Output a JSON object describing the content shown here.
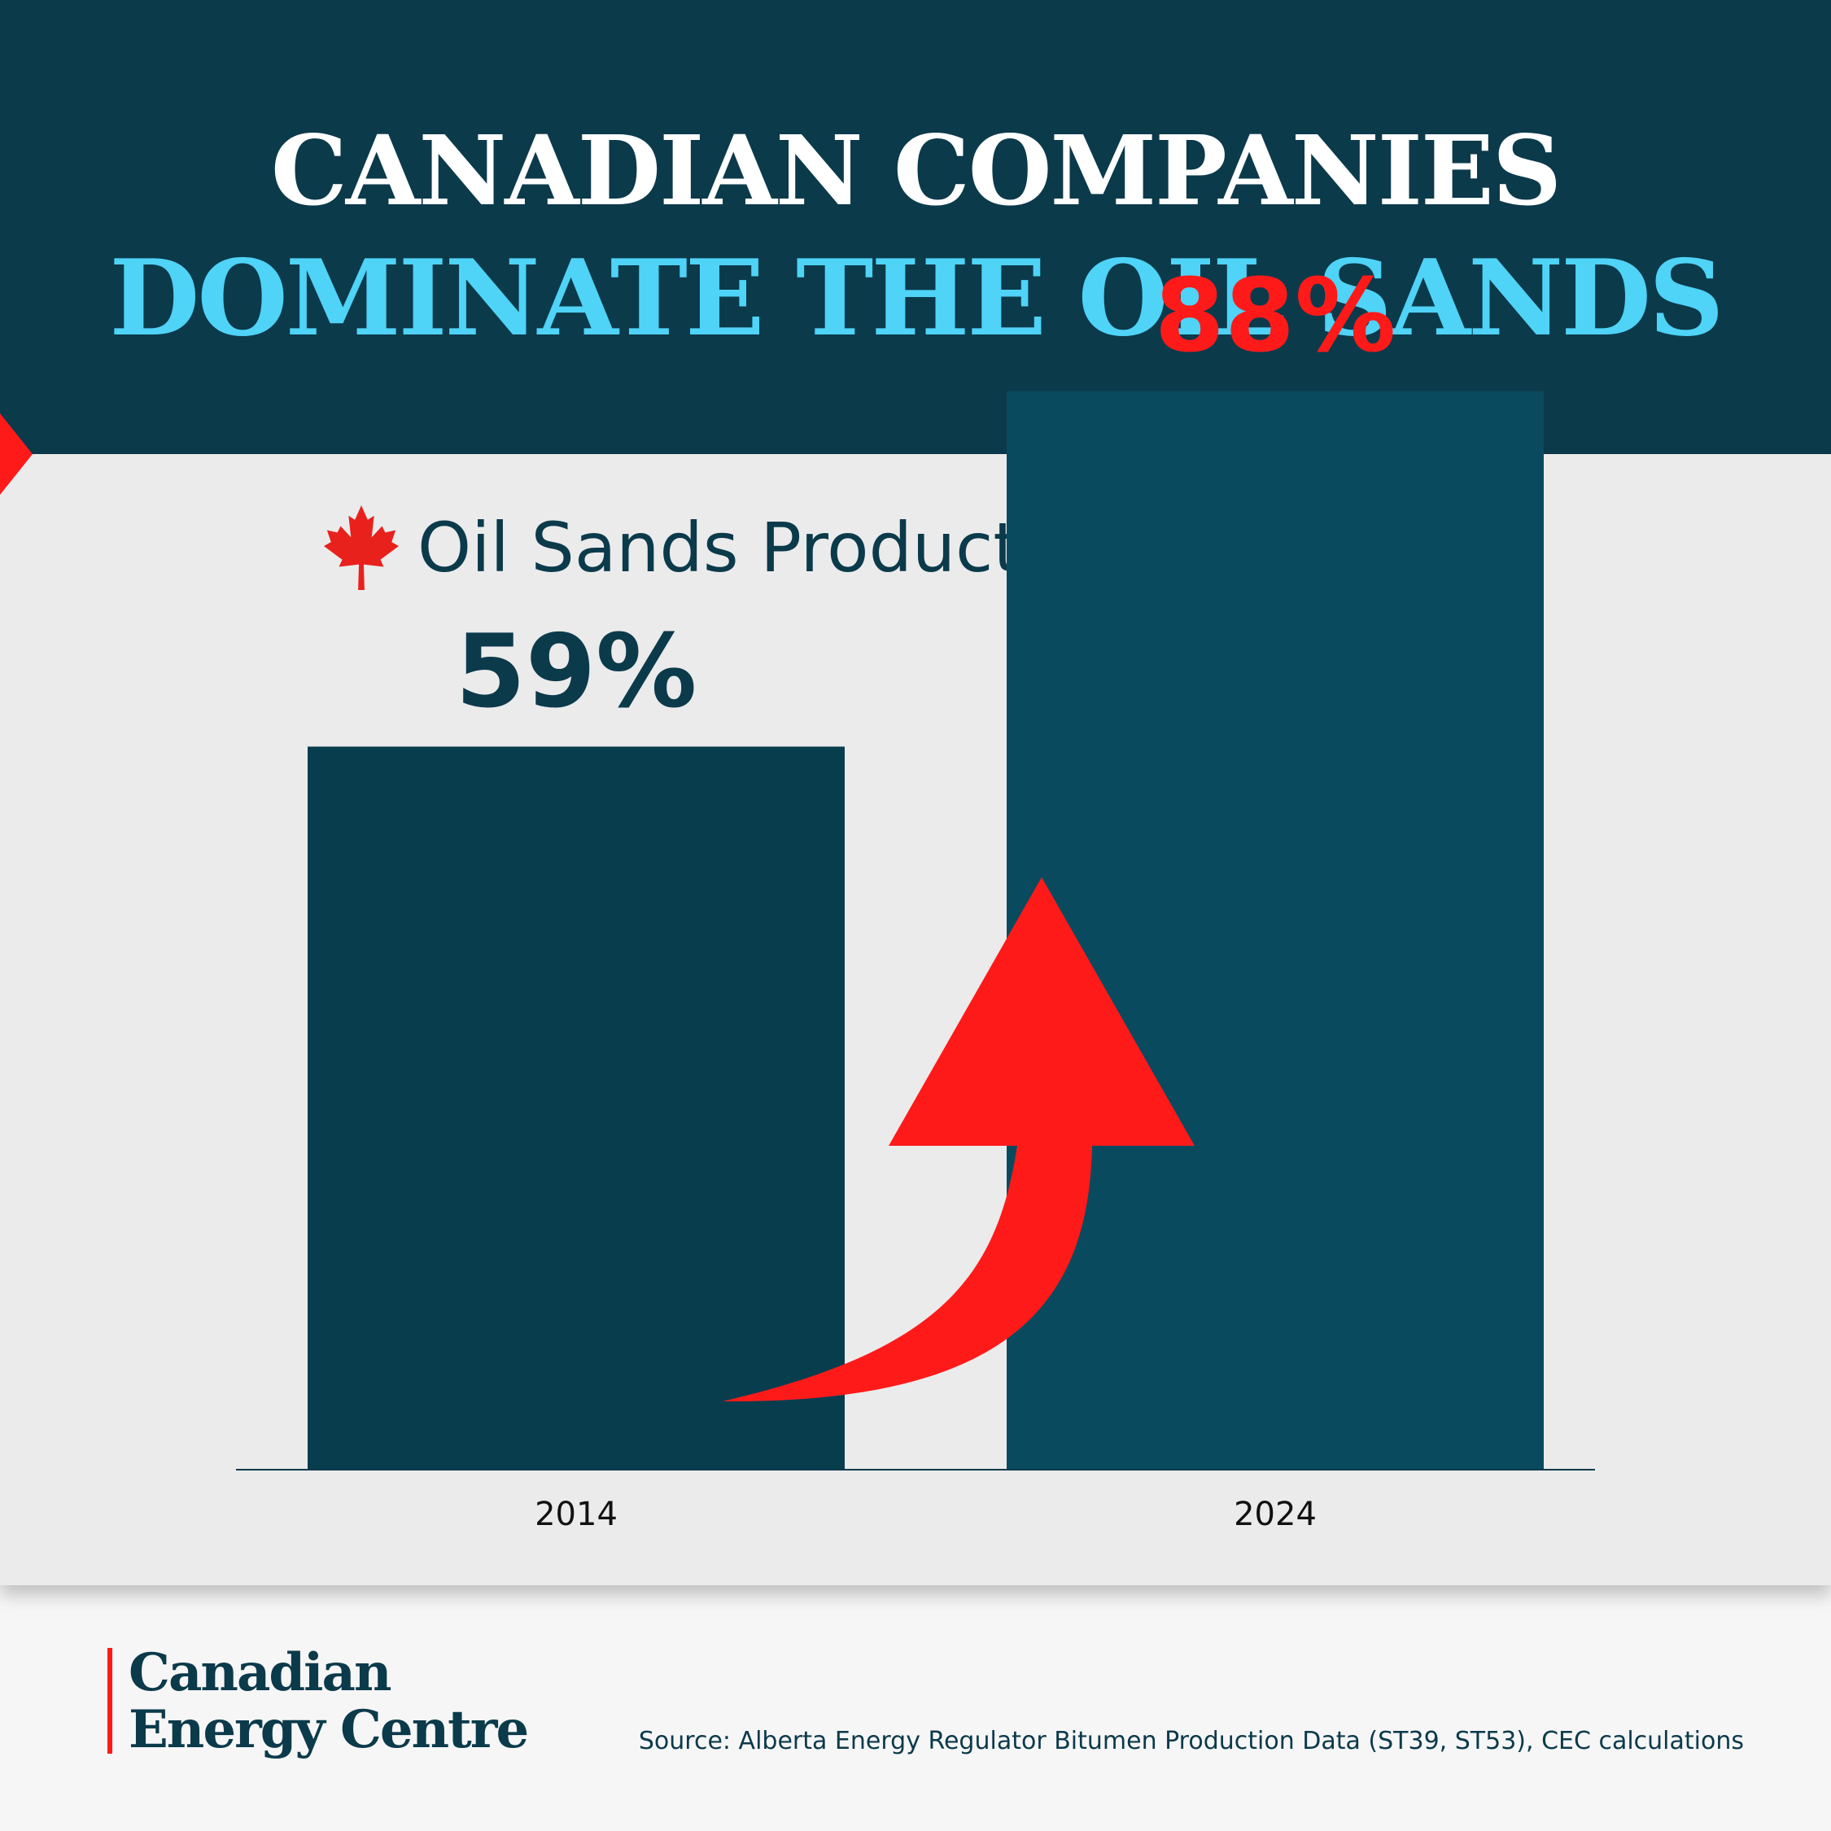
{
  "header": {
    "title_line1": "CANADIAN COMPANIES",
    "title_line2": "DOMINATE THE OIL SANDS"
  },
  "icons": {
    "maple_leaf": "maple-leaf-icon",
    "arrow": "up-arrow"
  },
  "colors": {
    "header_bg": "#0b3a4b",
    "title_accent": "#4fd3f7",
    "bar_2014": "#083d4e",
    "bar_2024": "#0a4a5e",
    "highlight": "#ff1a1a",
    "panel_bg": "#ebebeb"
  },
  "chart_data": {
    "type": "bar",
    "title": "Oil Sands Production Ownership",
    "categories": [
      "2014",
      "2024"
    ],
    "values": [
      59,
      88
    ],
    "value_labels": [
      "59%",
      "88%"
    ],
    "value_label_colors": [
      "#0b3a4b",
      "#ff1a1a"
    ],
    "bar_colors": [
      "#083d4e",
      "#0a4a5e"
    ],
    "ylim": [
      0,
      100
    ],
    "grid": false,
    "legend": "none",
    "xlabel": "",
    "ylabel": ""
  },
  "footer": {
    "logo_line1": "Canadian",
    "logo_line2": "Energy Centre",
    "source": "Source: Alberta Energy Regulator Bitumen Production Data (ST39, ST53), CEC calculations"
  }
}
